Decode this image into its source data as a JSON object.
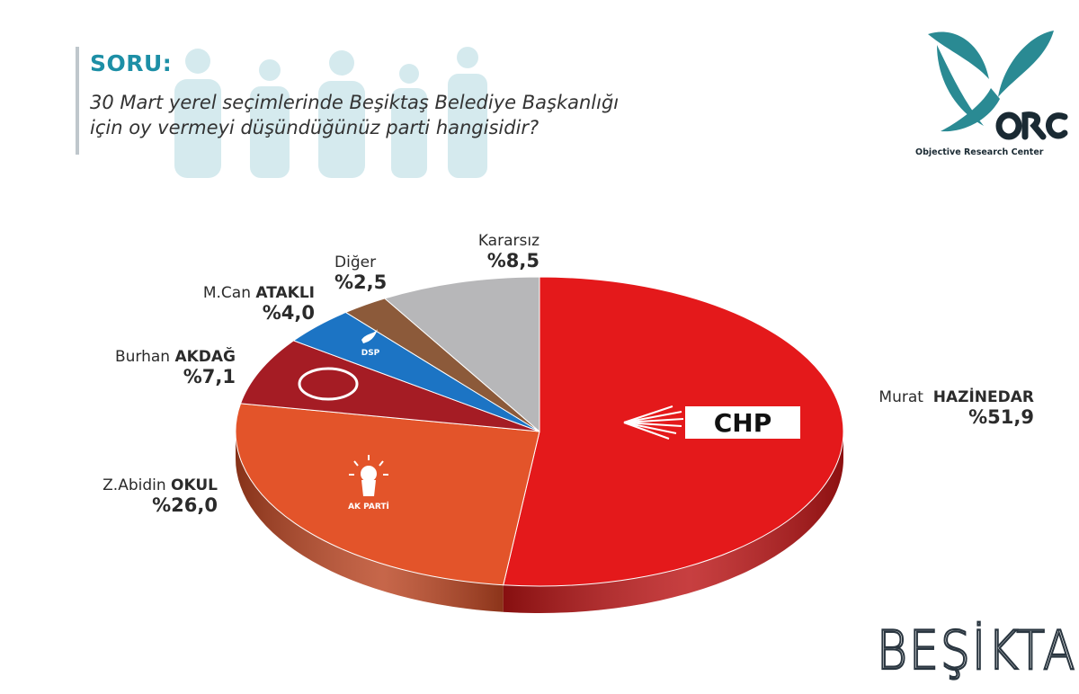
{
  "header": {
    "soru_label": "SORU:",
    "question_line1": "30 Mart yerel seçimlerinde Beşiktaş Belediye Başkanlığı",
    "question_line2": "için oy vermeyi düşündüğünüz parti hangisidir?"
  },
  "logo": {
    "wordmark": "ORC",
    "subtitle": "Objective Research Center",
    "color": "#2a8a93"
  },
  "city_label": "BEŞİKTAŞ",
  "chart_data": {
    "type": "pie",
    "title": "",
    "slices": [
      {
        "first": "Murat",
        "last": "HAZİNEDAR",
        "pct_label": "%51,9",
        "value": 51.9,
        "color": "#e4191b",
        "party": "CHP"
      },
      {
        "first": "Z.Abidin",
        "last": "OKUL",
        "pct_label": "%26,0",
        "value": 26.0,
        "color": "#e3542a",
        "party": "AK PARTİ"
      },
      {
        "first": "Burhan",
        "last": "AKDAĞ",
        "pct_label": "%7,1",
        "value": 7.1,
        "color": "#a51c24",
        "party": "MHP"
      },
      {
        "first": "M.Can",
        "last": "ATAKLI",
        "pct_label": "%4,0",
        "value": 4.0,
        "color": "#1c74c4",
        "party": "DSP"
      },
      {
        "first": "Diğer",
        "last": "",
        "pct_label": "%2,5",
        "value": 2.5,
        "color": "#8c5a3a",
        "party": ""
      },
      {
        "first": "Kararsız",
        "last": "",
        "pct_label": "%8,5",
        "value": 8.5,
        "color": "#b7b7b9",
        "party": ""
      }
    ]
  }
}
